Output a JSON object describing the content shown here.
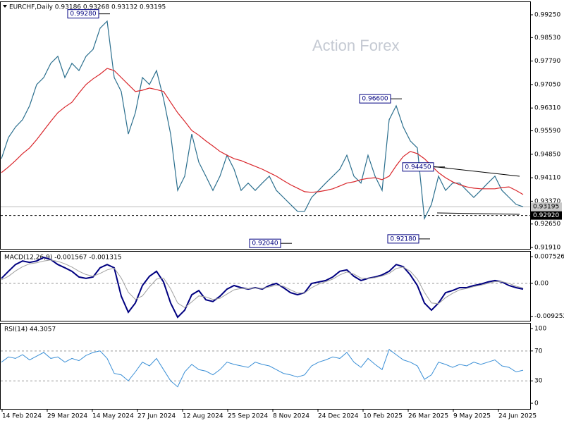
{
  "title_bar": "EURCHF,Daily  0.93186 0.93268 0.93132 0.93195",
  "watermark": "Action Forex",
  "x_labels": [
    "14 Feb 2024",
    "29 Mar 2024",
    "14 May 2024",
    "27 Jun 2024",
    "12 Aug 2024",
    "25 Sep 2024",
    "8 Nov 2024",
    "24 Dec 2024",
    "10 Feb 2025",
    "26 Mar 2025",
    "9 May 2025",
    "24 Jun 2025"
  ],
  "chart_data": [
    {
      "type": "line",
      "ylim": [
        0.91866,
        0.9965
      ],
      "yticks": [
        {
          "value": 0.9925,
          "label": "0.99250"
        },
        {
          "value": 0.9853,
          "label": "0.98530"
        },
        {
          "value": 0.9779,
          "label": "0.97790"
        },
        {
          "value": 0.9705,
          "label": "0.97050"
        },
        {
          "value": 0.9631,
          "label": "0.96310"
        },
        {
          "value": 0.9559,
          "label": "0.95590"
        },
        {
          "value": 0.9485,
          "label": "0.94850"
        },
        {
          "value": 0.9411,
          "label": "0.94110"
        },
        {
          "value": 0.9337,
          "label": "0.93370"
        },
        {
          "value": 0.9265,
          "label": "0.92650"
        },
        {
          "value": 0.9191,
          "label": "0.91910"
        }
      ],
      "price_labels": [
        0.93195,
        {
          "value": 0.9292,
          "label": "0.92920"
        }
      ],
      "annotations": [
        {
          "value": 0.9928,
          "label": "0.99280"
        },
        {
          "value": 0.966,
          "label": "0.96600"
        },
        {
          "value": 0.9445,
          "label": "0.94450"
        },
        {
          "value": 0.9218,
          "label": "0.92180"
        },
        {
          "value": 0.9204,
          "label": "0.92040"
        }
      ],
      "series": [
        {
          "color": "#2b6f8e",
          "values": [
            0.9471,
            0.9538,
            0.9571,
            0.9594,
            0.9638,
            0.9705,
            0.9727,
            0.9772,
            0.9794,
            0.9727,
            0.9772,
            0.9749,
            0.9794,
            0.9816,
            0.9883,
            0.9905,
            0.9727,
            0.9683,
            0.9549,
            0.9616,
            0.9727,
            0.9705,
            0.9749,
            0.966,
            0.9549,
            0.9371,
            0.9416,
            0.9549,
            0.946,
            0.9416,
            0.9371,
            0.9416,
            0.9482,
            0.9438,
            0.9371,
            0.9394,
            0.9371,
            0.9394,
            0.9416,
            0.9371,
            0.9349,
            0.9327,
            0.9305,
            0.9305,
            0.9349,
            0.9371,
            0.9394,
            0.9416,
            0.9438,
            0.9482,
            0.9416,
            0.9394,
            0.9482,
            0.9416,
            0.9371,
            0.9594,
            0.9638,
            0.9571,
            0.9527,
            0.9505,
            0.9282,
            0.9327,
            0.9416,
            0.9371,
            0.9394,
            0.9394,
            0.9371,
            0.9349,
            0.9371,
            0.9394,
            0.9416,
            0.9371,
            0.9349,
            0.9327,
            0.93195
          ]
        },
        {
          "color": "#d9262b",
          "values": [
            0.9427,
            0.9445,
            0.9465,
            0.9487,
            0.9505,
            0.9531,
            0.956,
            0.9589,
            0.9616,
            0.9634,
            0.9649,
            0.9678,
            0.9705,
            0.9723,
            0.9738,
            0.9756,
            0.9749,
            0.9727,
            0.9705,
            0.9683,
            0.9687,
            0.9694,
            0.9689,
            0.9683,
            0.9649,
            0.9616,
            0.9589,
            0.956,
            0.9545,
            0.9527,
            0.9511,
            0.9494,
            0.9482,
            0.9471,
            0.9465,
            0.9456,
            0.9447,
            0.9438,
            0.9427,
            0.9416,
            0.9402,
            0.9389,
            0.9378,
            0.9367,
            0.9365,
            0.9367,
            0.9371,
            0.9376,
            0.9385,
            0.9394,
            0.9398,
            0.9405,
            0.9409,
            0.9411,
            0.9405,
            0.9416,
            0.9449,
            0.9478,
            0.9494,
            0.9487,
            0.9471,
            0.9449,
            0.9427,
            0.9411,
            0.9398,
            0.9389,
            0.9382,
            0.9378,
            0.9376,
            0.9376,
            0.9376,
            0.938,
            0.9382,
            0.9371,
            0.9358
          ]
        }
      ]
    },
    {
      "type": "line",
      "title": "MACD(12,26,9) -0.001567 -0.001315",
      "ylim": [
        -0.0105,
        0.00891
      ],
      "yticks": [
        0.007526,
        {
          "value": 0,
          "label": "0.00"
        },
        -0.009252
      ],
      "levels": [
        0
      ],
      "series": [
        {
          "color": "#000080",
          "width": 2,
          "values": [
            0.0014,
            0.0034,
            0.0053,
            0.0063,
            0.0059,
            0.0063,
            0.0073,
            0.0067,
            0.0053,
            0.0044,
            0.0034,
            0.0018,
            0.0014,
            0.0018,
            0.0044,
            0.0053,
            0.0044,
            -0.0036,
            -0.0081,
            -0.0055,
            -0.0006,
            0.002,
            0.0034,
            0.0004,
            -0.0055,
            -0.0095,
            -0.0075,
            -0.0032,
            -0.002,
            -0.0046,
            -0.0051,
            -0.0036,
            -0.0016,
            -0.0006,
            -0.0012,
            -0.0016,
            -0.0012,
            -0.0016,
            -0.0006,
            0,
            -0.0012,
            -0.0026,
            -0.0032,
            -0.0026,
            0,
            0.0004,
            0.0008,
            0.0018,
            0.0034,
            0.0038,
            0.002,
            0.0008,
            0.0014,
            0.0018,
            0.0024,
            0.0034,
            0.0053,
            0.0047,
            0.0024,
            -0.0006,
            -0.0055,
            -0.0075,
            -0.0055,
            -0.0026,
            -0.002,
            -0.0012,
            -0.0012,
            -0.0006,
            -0.0002,
            0.0004,
            0.0008,
            0.0004,
            -0.0006,
            -0.0012,
            -0.0016
          ]
        },
        {
          "color": "#a0a0a0",
          "width": 1,
          "values": [
            0.001,
            0.002,
            0.0035,
            0.0047,
            0.0055,
            0.0058,
            0.0063,
            0.0066,
            0.0062,
            0.0055,
            0.0046,
            0.0034,
            0.0025,
            0.002,
            0.0028,
            0.0038,
            0.0043,
            0.0015,
            -0.0025,
            -0.0045,
            -0.0035,
            -0.001,
            0.0012,
            0.0015,
            -0.0015,
            -0.0055,
            -0.0068,
            -0.0052,
            -0.0035,
            -0.0038,
            -0.0045,
            -0.0042,
            -0.003,
            -0.0018,
            -0.0014,
            -0.0015,
            -0.0013,
            -0.0014,
            -0.001,
            -0.0005,
            -0.0008,
            -0.0018,
            -0.0027,
            -0.0027,
            -0.0012,
            -0.0002,
            0.0005,
            0.0012,
            0.0024,
            0.0032,
            0.0026,
            0.0015,
            0.0014,
            0.0016,
            0.0021,
            0.0028,
            0.0042,
            0.0046,
            0.0034,
            0.0012,
            -0.0025,
            -0.0055,
            -0.0057,
            -0.004,
            -0.0028,
            -0.0018,
            -0.0014,
            -0.0009,
            -0.0005,
            0,
            0.0005,
            0.0005,
            0,
            -0.0008,
            -0.0013
          ]
        }
      ]
    },
    {
      "type": "line",
      "title": "RSI(14) 44.3057",
      "ylim": [
        -7.5,
        106.6
      ],
      "yticks": [
        100,
        70,
        30,
        0
      ],
      "levels": [
        70,
        30
      ],
      "series": [
        {
          "color": "#3a8fd6",
          "width": 1,
          "values": [
            55,
            62,
            60,
            65,
            58,
            63,
            68,
            60,
            62,
            55,
            60,
            57,
            64,
            68,
            70,
            60,
            40,
            38,
            30,
            42,
            55,
            50,
            60,
            45,
            30,
            22,
            42,
            52,
            45,
            43,
            38,
            45,
            55,
            52,
            50,
            48,
            55,
            52,
            50,
            45,
            40,
            38,
            35,
            38,
            50,
            55,
            58,
            62,
            60,
            68,
            55,
            48,
            60,
            52,
            45,
            72,
            65,
            58,
            55,
            50,
            32,
            38,
            55,
            52,
            48,
            52,
            50,
            55,
            52,
            55,
            58,
            50,
            48,
            42,
            44.3057
          ]
        }
      ]
    }
  ]
}
